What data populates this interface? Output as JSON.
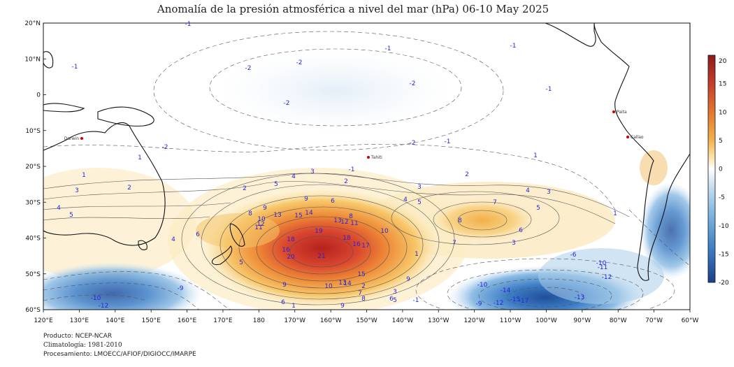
{
  "title": "Anomalía de la presión atmosférica a nivel del mar (hPa) 06-10 May 2025",
  "lat_labels": [
    "20°N",
    "10°N",
    "0",
    "10°S",
    "20°S",
    "30°S",
    "40°S",
    "50°S",
    "60°S"
  ],
  "lon_labels": [
    "120°E",
    "130°E",
    "140°E",
    "150°E",
    "160°E",
    "170°E",
    "180",
    "170°W",
    "160°W",
    "150°W",
    "140°W",
    "130°W",
    "120°W",
    "110°W",
    "100°W",
    "90°W",
    "80°W",
    "70°W",
    "60°W"
  ],
  "colorbar": {
    "ticks": [
      "20",
      "15",
      "10",
      "5",
      "0",
      "-5",
      "-10",
      "-15",
      "-20"
    ],
    "colors": [
      "#8e1a1a",
      "#c43b2c",
      "#e2762e",
      "#f1b04c",
      "#fbe3a6",
      "#ffffff",
      "#c6ddf0",
      "#7fb4e0",
      "#3d7fc4",
      "#1c3f8a"
    ]
  },
  "places": [
    {
      "name": "Darwin"
    },
    {
      "name": "Tahiti"
    },
    {
      "name": "Paita"
    },
    {
      "name": "Callao"
    }
  ],
  "anomaly_features": [
    {
      "sign": "positive",
      "peak": 21,
      "near": "160°W 43°S"
    },
    {
      "sign": "positive",
      "peak": 8,
      "near": "115°W 35°S"
    },
    {
      "sign": "negative",
      "peak": -17,
      "near": "100°W 57°S"
    },
    {
      "sign": "negative",
      "peak": -12,
      "near": "145°E 58°S"
    }
  ],
  "contour_labels": [
    "-2",
    "-1",
    "1",
    "2",
    "3",
    "4",
    "5",
    "6",
    "7",
    "8",
    "9",
    "10",
    "11",
    "12",
    "13",
    "14",
    "15",
    "16",
    "17",
    "18",
    "19",
    "20",
    "21",
    "-6",
    "-9",
    "-10",
    "-11",
    "-12",
    "-13",
    "-14",
    "-15",
    "-17"
  ],
  "credits": {
    "producto": "Producto: NCEP-NCAR",
    "climatologia": "Climatología: 1981-2010",
    "procesamiento": "Procesamiento: LMOECC/AFIOF/DIGIOCC/IMARPE"
  }
}
